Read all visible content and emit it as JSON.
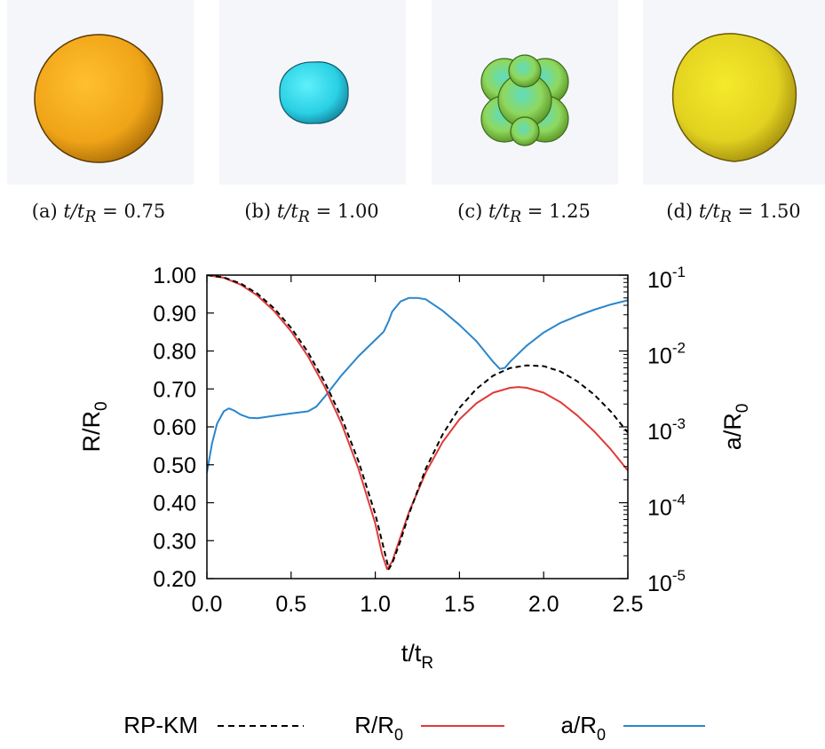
{
  "panels": [
    {
      "label": "(a)",
      "math": "t/t",
      "sub": "R",
      "eq": " = 0.75",
      "color": "#f2a21a"
    },
    {
      "label": "(b)",
      "math": "t/t",
      "sub": "R",
      "eq": " = 1.00",
      "color": "#2fd6e4"
    },
    {
      "label": "(c)",
      "math": "t/t",
      "sub": "R",
      "eq": " = 1.25",
      "color": "#8fd860"
    },
    {
      "label": "(d)",
      "math": "t/t",
      "sub": "R",
      "eq": " = 1.50",
      "color": "#e7d92a"
    }
  ],
  "chart_data": {
    "type": "line",
    "xlabel": "t/t_R",
    "ylabel_left": "R/R_0",
    "ylabel_right": "a/R_0",
    "xlim": [
      0,
      2.5
    ],
    "ylim_left": [
      0.2,
      1.0
    ],
    "ylim_right": [
      1e-05,
      0.1
    ],
    "right_scale": "log",
    "xticks": [
      "0.0",
      "0.5",
      "1.0",
      "1.5",
      "2.0",
      "2.5"
    ],
    "yticks_left": [
      "0.20",
      "0.30",
      "0.40",
      "0.50",
      "0.60",
      "0.70",
      "0.80",
      "0.90",
      "1.00"
    ],
    "yticks_right": [
      {
        "base": "10",
        "exp": "-5"
      },
      {
        "base": "10",
        "exp": "-4"
      },
      {
        "base": "10",
        "exp": "-3"
      },
      {
        "base": "10",
        "exp": "-2"
      },
      {
        "base": "10",
        "exp": "-1"
      }
    ],
    "legend_position": "bottom",
    "series": [
      {
        "name": "RP-KM",
        "axis": "left",
        "color": "#000000",
        "dash": true,
        "x": [
          0.0,
          0.1,
          0.2,
          0.3,
          0.4,
          0.5,
          0.6,
          0.7,
          0.8,
          0.9,
          1.0,
          1.05,
          1.08,
          1.1,
          1.15,
          1.2,
          1.3,
          1.4,
          1.5,
          1.6,
          1.7,
          1.8,
          1.9,
          2.0,
          2.1,
          2.2,
          2.3,
          2.4,
          2.5
        ],
        "y": [
          1.0,
          0.994,
          0.978,
          0.951,
          0.912,
          0.861,
          0.797,
          0.718,
          0.624,
          0.51,
          0.37,
          0.28,
          0.225,
          0.24,
          0.3,
          0.37,
          0.49,
          0.58,
          0.65,
          0.7,
          0.735,
          0.755,
          0.762,
          0.76,
          0.746,
          0.72,
          0.685,
          0.64,
          0.585
        ]
      },
      {
        "name": "R/R_0",
        "axis": "left",
        "color": "#e03a3a",
        "dash": false,
        "x": [
          0.0,
          0.1,
          0.2,
          0.3,
          0.4,
          0.5,
          0.6,
          0.7,
          0.8,
          0.9,
          1.0,
          1.04,
          1.07,
          1.1,
          1.15,
          1.2,
          1.3,
          1.4,
          1.5,
          1.6,
          1.7,
          1.8,
          1.85,
          1.9,
          2.0,
          2.1,
          2.2,
          2.3,
          2.4,
          2.5
        ],
        "y": [
          1.0,
          0.993,
          0.975,
          0.946,
          0.905,
          0.852,
          0.786,
          0.705,
          0.608,
          0.49,
          0.345,
          0.265,
          0.225,
          0.245,
          0.31,
          0.375,
          0.48,
          0.56,
          0.62,
          0.662,
          0.69,
          0.703,
          0.705,
          0.703,
          0.69,
          0.665,
          0.63,
          0.588,
          0.54,
          0.485
        ]
      },
      {
        "name": "a/R_0",
        "axis": "right",
        "color": "#2a86cc",
        "dash": false,
        "x": [
          0.0,
          0.03,
          0.06,
          0.1,
          0.13,
          0.16,
          0.2,
          0.25,
          0.3,
          0.4,
          0.5,
          0.6,
          0.65,
          0.7,
          0.8,
          0.9,
          1.0,
          1.05,
          1.08,
          1.1,
          1.15,
          1.2,
          1.25,
          1.3,
          1.4,
          1.5,
          1.6,
          1.7,
          1.74,
          1.77,
          1.8,
          1.9,
          2.0,
          2.1,
          2.2,
          2.3,
          2.4,
          2.5
        ],
        "y": [
          0.00025,
          0.0006,
          0.0011,
          0.0016,
          0.00175,
          0.00165,
          0.00145,
          0.00132,
          0.0013,
          0.0014,
          0.0015,
          0.0016,
          0.00185,
          0.0025,
          0.0048,
          0.0085,
          0.014,
          0.018,
          0.025,
          0.033,
          0.045,
          0.05,
          0.05,
          0.048,
          0.034,
          0.022,
          0.0135,
          0.0072,
          0.0058,
          0.006,
          0.0072,
          0.0118,
          0.0175,
          0.0235,
          0.029,
          0.035,
          0.041,
          0.0465
        ]
      }
    ]
  }
}
